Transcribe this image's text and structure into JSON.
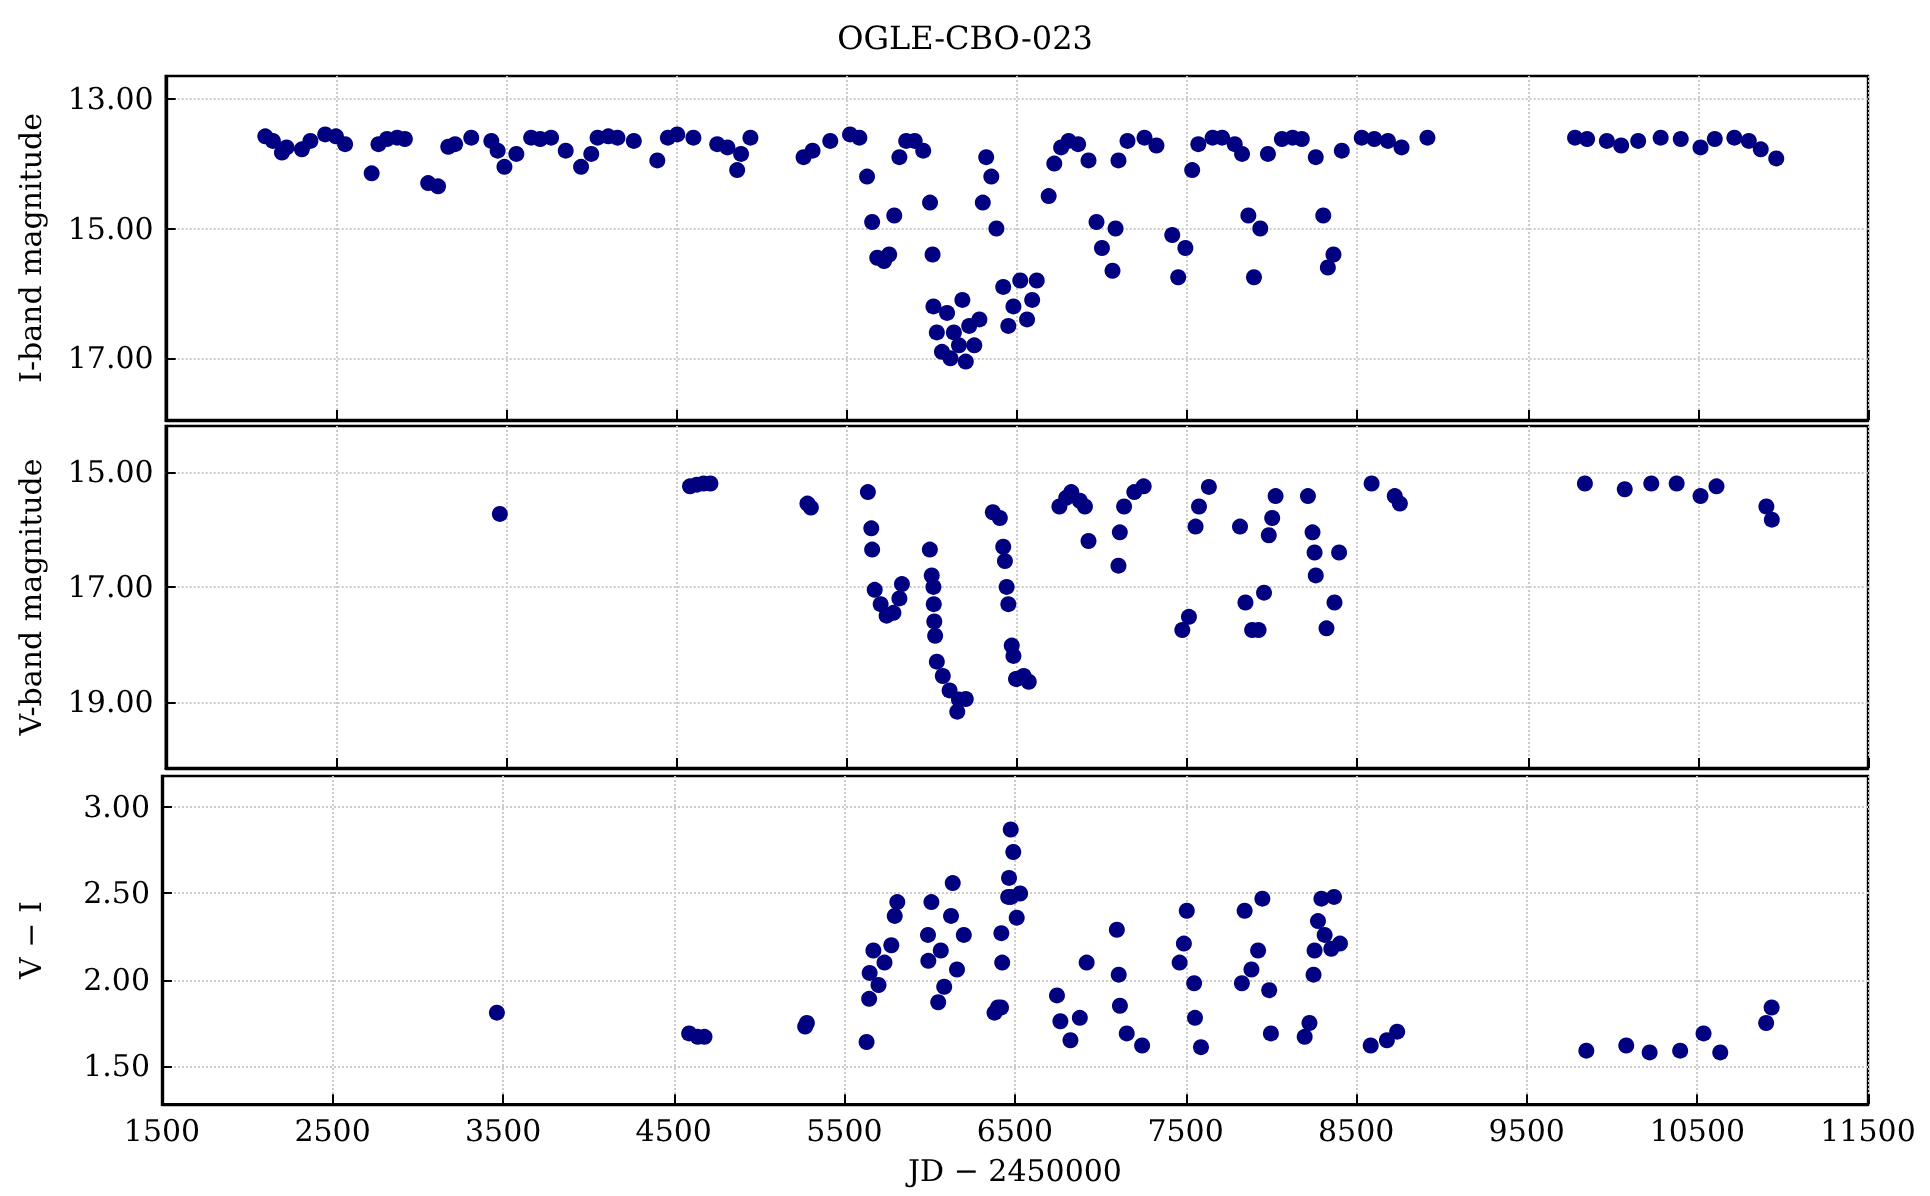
{
  "chart_data": [
    {
      "type": "scatter",
      "title": "OGLE-CBO-023",
      "ylabel": "I-band magnitude",
      "xlim": [
        1500,
        11500
      ],
      "xticks": [
        1500,
        2500,
        3500,
        4500,
        5500,
        6500,
        7500,
        8500,
        9500,
        10500,
        11500
      ],
      "ylim": [
        17.95,
        12.65
      ],
      "yticks": [
        {
          "value": 13,
          "label": "13.00"
        },
        {
          "value": 15,
          "label": "15.00"
        },
        {
          "value": 17,
          "label": "17.00"
        }
      ],
      "grid": true,
      "marker": "circle",
      "tick_labels": "y",
      "series": [
        {
          "color": "#000080",
          "x": [
            2085,
            2130,
            2183,
            2210,
            2300,
            2350,
            2437,
            2500,
            2554,
            2710,
            2750,
            2800,
            2860,
            2905,
            3042,
            3100,
            3160,
            3200,
            3295,
            3413,
            3450,
            3490,
            3560,
            3647,
            3700,
            3764,
            3850,
            3940,
            4000,
            4037,
            4100,
            4154,
            4250,
            4388,
            4450,
            4505,
            4600,
            4740,
            4800,
            4857,
            4880,
            4935,
            5247,
            5300,
            5404,
            5520,
            5575,
            5620,
            5650,
            5680,
            5720,
            5750,
            5780,
            5810,
            5850,
            5900,
            5950,
            5990,
            6005,
            6010,
            6030,
            6060,
            6090,
            6110,
            6130,
            6160,
            6180,
            6200,
            6220,
            6250,
            6280,
            6300,
            6320,
            6350,
            6380,
            6420,
            6450,
            6480,
            6520,
            6560,
            6590,
            6617,
            6687,
            6720,
            6760,
            6804,
            6860,
            6921,
            6968,
            7000,
            7062,
            7080,
            7097,
            7150,
            7250,
            7320,
            7413,
            7448,
            7490,
            7530,
            7566,
            7650,
            7706,
            7780,
            7823,
            7860,
            7893,
            7930,
            7975,
            8057,
            8120,
            8174,
            8256,
            8300,
            8327,
            8360,
            8409,
            8526,
            8600,
            8680,
            8760,
            8912,
            9779,
            9850,
            9966,
            10050,
            10150,
            10282,
            10400,
            10516,
            10600,
            10715,
            10800,
            10870,
            10961
          ],
          "values": [
            13.58,
            13.65,
            13.83,
            13.75,
            13.78,
            13.65,
            13.55,
            13.58,
            13.7,
            14.15,
            13.7,
            13.62,
            13.6,
            13.62,
            14.3,
            14.35,
            13.74,
            13.7,
            13.6,
            13.65,
            13.8,
            14.05,
            13.85,
            13.6,
            13.62,
            13.6,
            13.8,
            14.05,
            13.85,
            13.6,
            13.58,
            13.6,
            13.65,
            13.95,
            13.6,
            13.55,
            13.6,
            13.7,
            13.75,
            14.1,
            13.85,
            13.6,
            13.9,
            13.8,
            13.65,
            13.55,
            13.6,
            14.2,
            14.9,
            15.45,
            15.5,
            15.4,
            14.8,
            13.9,
            13.65,
            13.65,
            13.8,
            14.6,
            15.4,
            16.2,
            16.6,
            16.9,
            16.3,
            17.0,
            16.6,
            16.8,
            16.1,
            17.05,
            16.5,
            16.8,
            16.4,
            14.6,
            13.9,
            14.2,
            15.0,
            15.9,
            16.5,
            16.2,
            15.8,
            16.4,
            16.1,
            15.8,
            14.5,
            14.0,
            13.75,
            13.65,
            13.7,
            13.95,
            14.9,
            15.3,
            15.65,
            15.0,
            13.95,
            13.65,
            13.6,
            13.72,
            15.1,
            15.75,
            15.3,
            14.1,
            13.7,
            13.6,
            13.6,
            13.7,
            13.85,
            14.8,
            15.75,
            15.0,
            13.85,
            13.62,
            13.6,
            13.62,
            13.9,
            14.8,
            15.6,
            15.4,
            13.8,
            13.6,
            13.62,
            13.65,
            13.75,
            13.6,
            13.6,
            13.62,
            13.65,
            13.72,
            13.65,
            13.6,
            13.62,
            13.75,
            13.62,
            13.6,
            13.65,
            13.78,
            13.92
          ]
        }
      ]
    },
    {
      "type": "scatter",
      "ylabel": "V-band magnitude",
      "xlim": [
        1500,
        11500
      ],
      "xticks": [
        1500,
        2500,
        3500,
        4500,
        5500,
        6500,
        7500,
        8500,
        9500,
        10500,
        11500
      ],
      "ylim": [
        20.15,
        14.2
      ],
      "yticks": [
        {
          "value": 15,
          "label": "15.00"
        },
        {
          "value": 17,
          "label": "17.00"
        },
        {
          "value": 19,
          "label": "19.00"
        }
      ],
      "grid": true,
      "marker": "circle",
      "tick_labels": "y",
      "series": [
        {
          "color": "#000080",
          "x": [
            3463,
            4580,
            4620,
            4660,
            4700,
            5270,
            5290,
            5625,
            5645,
            5650,
            5665,
            5700,
            5735,
            5775,
            5810,
            5825,
            5989,
            6000,
            6010,
            6012,
            6015,
            6020,
            6030,
            6065,
            6105,
            6160,
            6150,
            6200,
            6359,
            6400,
            6420,
            6430,
            6440,
            6450,
            6470,
            6480,
            6495,
            6500,
            6540,
            6570,
            6750,
            6790,
            6820,
            6870,
            6900,
            6921,
            7097,
            7105,
            7130,
            7190,
            7245,
            7472,
            7511,
            7550,
            7570,
            7628,
            7811,
            7843,
            7882,
            7920,
            7952,
            7980,
            8000,
            8020,
            8210,
            8237,
            8249,
            8256,
            8319,
            8366,
            8393,
            8584,
            8720,
            8750,
            9837,
            10071,
            10227,
            10376,
            10516,
            10610,
            10903,
            10935
          ],
          "values": [
            15.73,
            15.25,
            15.22,
            15.2,
            15.2,
            15.55,
            15.62,
            15.35,
            15.98,
            16.35,
            17.05,
            17.3,
            17.5,
            17.45,
            17.2,
            16.95,
            16.35,
            16.8,
            17.0,
            17.3,
            17.6,
            17.85,
            18.3,
            18.55,
            18.8,
            18.96,
            19.17,
            18.95,
            15.7,
            15.8,
            16.3,
            16.55,
            17.0,
            17.3,
            18.02,
            18.2,
            18.6,
            18.6,
            18.55,
            18.65,
            15.6,
            15.45,
            15.35,
            15.5,
            15.6,
            16.2,
            16.63,
            16.05,
            15.6,
            15.35,
            15.25,
            17.75,
            17.52,
            15.95,
            15.6,
            15.26,
            15.95,
            17.27,
            17.75,
            17.75,
            17.1,
            16.1,
            15.8,
            15.42,
            15.42,
            16.05,
            16.4,
            16.8,
            17.72,
            17.27,
            16.4,
            15.2,
            15.42,
            15.55,
            15.2,
            15.3,
            15.2,
            15.2,
            15.42,
            15.25,
            15.6,
            15.83
          ]
        }
      ]
    },
    {
      "type": "scatter",
      "xlabel": "JD − 2450000",
      "ylabel": "V − I",
      "xlim": [
        1500,
        11500
      ],
      "xticks": [
        1500,
        2500,
        3500,
        4500,
        5500,
        6500,
        7500,
        8500,
        9500,
        10500,
        11500
      ],
      "ylim": [
        1.28,
        3.18
      ],
      "yticks": [
        {
          "value": 1.5,
          "label": "1.50"
        },
        {
          "value": 2,
          "label": "2.00"
        },
        {
          "value": 2.5,
          "label": "2.50"
        },
        {
          "value": 3,
          "label": "3.00"
        }
      ],
      "grid": true,
      "marker": "circle",
      "series": [
        {
          "color": "#000080",
          "x": [
            3463,
            4590,
            4640,
            4680,
            5270,
            5280,
            5630,
            5645,
            5648,
            5670,
            5700,
            5735,
            5775,
            5795,
            5810,
            6010,
            5990,
            5992,
            6050,
            6065,
            6125,
            6135,
            6160,
            6200,
            6085,
            6380,
            6400,
            6425,
            6420,
            6460,
            6465,
            6490,
            6475,
            6477,
            6530,
            6510,
            6418,
            6746,
            6766,
            6825,
            6880,
            6920,
            7097,
            7108,
            7115,
            7155,
            7245,
            7507,
            7490,
            7465,
            7550,
            7555,
            7590,
            7846,
            7830,
            7886,
            7925,
            7950,
            7990,
            8000,
            8198,
            8226,
            8250,
            8256,
            8276,
            8296,
            8354,
            8370,
            8405,
            8315,
            8585,
            8680,
            8740,
            9849,
            10083,
            10220,
            10399,
            10536,
            10634,
            10903,
            10935
          ],
          "values": [
            1.81,
            1.69,
            1.67,
            1.67,
            1.73,
            1.75,
            1.64,
            1.89,
            2.04,
            2.17,
            1.97,
            2.1,
            2.2,
            2.37,
            2.45,
            2.45,
            2.26,
            2.11,
            1.87,
            2.17,
            2.37,
            2.56,
            2.06,
            2.26,
            1.96,
            1.81,
            1.84,
            2.1,
            2.27,
            2.48,
            2.59,
            2.74,
            2.87,
            2.48,
            2.5,
            2.36,
            1.84,
            1.91,
            1.76,
            1.65,
            1.78,
            2.1,
            2.29,
            2.03,
            1.85,
            1.69,
            1.62,
            2.4,
            2.21,
            2.1,
            1.98,
            1.78,
            1.61,
            2.4,
            1.98,
            2.06,
            2.17,
            2.47,
            1.94,
            1.69,
            1.67,
            1.75,
            2.03,
            2.17,
            2.34,
            2.47,
            2.18,
            2.48,
            2.21,
            2.26,
            1.62,
            1.65,
            1.7,
            1.59,
            1.62,
            1.58,
            1.59,
            1.69,
            1.58,
            1.75,
            1.84
          ]
        }
      ]
    }
  ]
}
